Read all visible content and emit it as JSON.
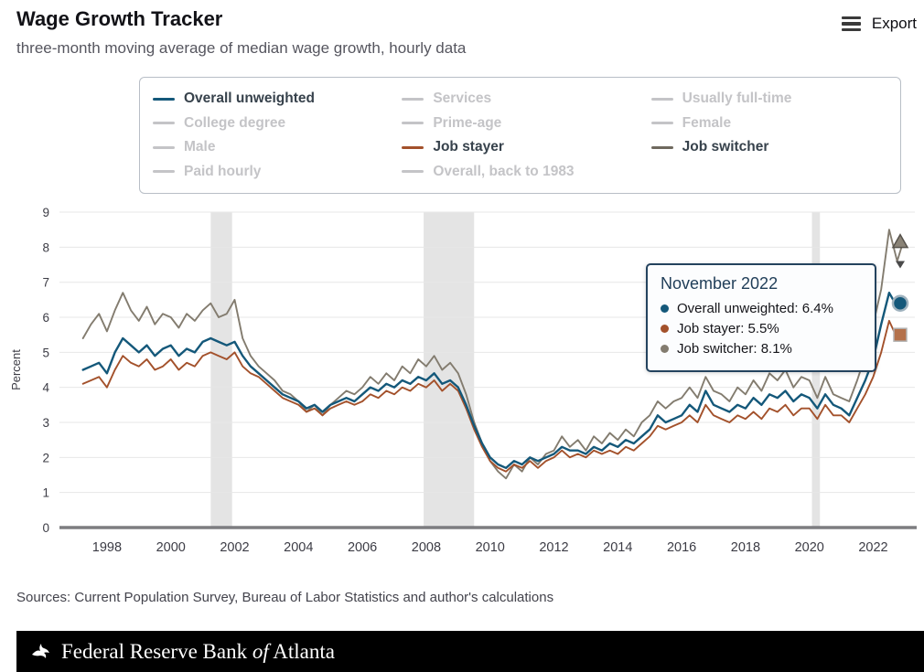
{
  "header": {
    "title": "Wage Growth Tracker",
    "subtitle": "three-month moving average of median wage growth, hourly data",
    "export_label": "Export"
  },
  "legend": {
    "inactive_color": "#c4c4c7",
    "active_text_color": "#37424c",
    "items": [
      {
        "label": "Overall unweighted",
        "active": true,
        "color": "#14587a"
      },
      {
        "label": "Services",
        "active": false
      },
      {
        "label": "Usually full-time",
        "active": false
      },
      {
        "label": "College degree",
        "active": false
      },
      {
        "label": "Prime-age",
        "active": false
      },
      {
        "label": "Female",
        "active": false
      },
      {
        "label": "Male",
        "active": false
      },
      {
        "label": "Job stayer",
        "active": true,
        "color": "#a3512b"
      },
      {
        "label": "Job switcher",
        "active": true,
        "color": "#6f695e"
      },
      {
        "label": "Paid hourly",
        "active": false
      },
      {
        "label": "Overall, back to 1983",
        "active": false
      }
    ]
  },
  "tooltip": {
    "title": "November 2022",
    "items": [
      {
        "label": "Overall unweighted",
        "value": "6.4%",
        "color": "#14587a"
      },
      {
        "label": "Job stayer",
        "value": "5.5%",
        "color": "#a3512b"
      },
      {
        "label": "Job switcher",
        "value": "8.1%",
        "color": "#837c6f"
      }
    ]
  },
  "chart_data": {
    "type": "line",
    "title": "",
    "xlabel": "",
    "ylabel": "Percent",
    "ylim": [
      0,
      9
    ],
    "yticks": [
      0,
      1,
      2,
      3,
      4,
      5,
      6,
      7,
      8,
      9
    ],
    "xticks": [
      1998,
      2000,
      2002,
      2004,
      2006,
      2008,
      2010,
      2012,
      2014,
      2016,
      2018,
      2020,
      2022
    ],
    "grid": "horizontal",
    "legend_position": "top",
    "x": [
      1997.25,
      1997.5,
      1997.75,
      1998,
      1998.25,
      1998.5,
      1998.75,
      1999,
      1999.25,
      1999.5,
      1999.75,
      2000,
      2000.25,
      2000.5,
      2000.75,
      2001,
      2001.25,
      2001.5,
      2001.75,
      2002,
      2002.25,
      2002.5,
      2002.75,
      2003,
      2003.25,
      2003.5,
      2003.75,
      2004,
      2004.25,
      2004.5,
      2004.75,
      2005,
      2005.25,
      2005.5,
      2005.75,
      2006,
      2006.25,
      2006.5,
      2006.75,
      2007,
      2007.25,
      2007.5,
      2007.75,
      2008,
      2008.25,
      2008.5,
      2008.75,
      2009,
      2009.25,
      2009.5,
      2009.75,
      2010,
      2010.25,
      2010.5,
      2010.75,
      2011,
      2011.25,
      2011.5,
      2011.75,
      2012,
      2012.25,
      2012.5,
      2012.75,
      2013,
      2013.25,
      2013.5,
      2013.75,
      2014,
      2014.25,
      2014.5,
      2014.75,
      2015,
      2015.25,
      2015.5,
      2015.75,
      2016,
      2016.25,
      2016.5,
      2016.75,
      2017,
      2017.25,
      2017.5,
      2017.75,
      2018,
      2018.25,
      2018.5,
      2018.75,
      2019,
      2019.25,
      2019.5,
      2019.75,
      2020,
      2020.25,
      2020.5,
      2020.75,
      2021,
      2021.25,
      2021.5,
      2021.75,
      2022,
      2022.25,
      2022.5,
      2022.75,
      2022.92
    ],
    "series": [
      {
        "name": "Overall unweighted",
        "color": "#14587a",
        "width": 2.4,
        "values": [
          4.5,
          4.6,
          4.7,
          4.4,
          5.0,
          5.4,
          5.2,
          5.0,
          5.2,
          4.9,
          5.1,
          5.2,
          4.9,
          5.1,
          5.0,
          5.3,
          5.4,
          5.3,
          5.2,
          5.3,
          4.9,
          4.6,
          4.4,
          4.2,
          4.0,
          3.8,
          3.7,
          3.6,
          3.4,
          3.5,
          3.3,
          3.5,
          3.6,
          3.7,
          3.6,
          3.8,
          4.0,
          3.9,
          4.1,
          4.0,
          4.2,
          4.1,
          4.3,
          4.2,
          4.4,
          4.1,
          4.2,
          4.0,
          3.5,
          2.9,
          2.4,
          2.0,
          1.8,
          1.7,
          1.9,
          1.8,
          2.0,
          1.9,
          2.0,
          2.1,
          2.3,
          2.2,
          2.2,
          2.1,
          2.3,
          2.2,
          2.4,
          2.3,
          2.5,
          2.4,
          2.6,
          2.8,
          3.2,
          3.0,
          3.1,
          3.2,
          3.5,
          3.3,
          3.9,
          3.5,
          3.4,
          3.3,
          3.5,
          3.4,
          3.7,
          3.5,
          3.8,
          3.7,
          3.9,
          3.6,
          3.8,
          3.7,
          3.4,
          3.8,
          3.5,
          3.4,
          3.2,
          3.7,
          4.2,
          4.8,
          5.8,
          6.7,
          6.3,
          6.4
        ]
      },
      {
        "name": "Job stayer",
        "color": "#a3512b",
        "width": 1.9,
        "values": [
          4.1,
          4.2,
          4.3,
          4.0,
          4.5,
          4.9,
          4.7,
          4.6,
          4.8,
          4.5,
          4.6,
          4.8,
          4.5,
          4.7,
          4.6,
          4.9,
          5.0,
          4.9,
          4.8,
          5.0,
          4.6,
          4.4,
          4.3,
          4.1,
          3.9,
          3.7,
          3.6,
          3.5,
          3.3,
          3.4,
          3.2,
          3.4,
          3.5,
          3.6,
          3.5,
          3.6,
          3.8,
          3.7,
          3.9,
          3.8,
          4.0,
          3.9,
          4.1,
          4.0,
          4.2,
          3.9,
          4.1,
          3.9,
          3.4,
          2.8,
          2.3,
          1.9,
          1.7,
          1.6,
          1.8,
          1.7,
          1.9,
          1.7,
          1.9,
          2.0,
          2.2,
          2.0,
          2.1,
          2.0,
          2.2,
          2.1,
          2.2,
          2.1,
          2.3,
          2.2,
          2.4,
          2.6,
          2.9,
          2.8,
          2.9,
          3.0,
          3.2,
          3.0,
          3.5,
          3.2,
          3.1,
          3.0,
          3.2,
          3.1,
          3.3,
          3.1,
          3.4,
          3.3,
          3.5,
          3.2,
          3.4,
          3.4,
          3.1,
          3.5,
          3.2,
          3.2,
          3.0,
          3.4,
          3.8,
          4.3,
          5.0,
          5.9,
          5.4,
          5.5
        ]
      },
      {
        "name": "Job switcher",
        "color": "#837c6f",
        "width": 1.9,
        "values": [
          5.4,
          5.8,
          6.1,
          5.6,
          6.2,
          6.7,
          6.2,
          5.9,
          6.3,
          5.8,
          6.1,
          6.0,
          5.7,
          6.1,
          5.9,
          6.2,
          6.4,
          6.0,
          6.1,
          6.5,
          5.4,
          4.9,
          4.6,
          4.4,
          4.2,
          3.9,
          3.8,
          3.6,
          3.3,
          3.5,
          3.2,
          3.5,
          3.7,
          3.9,
          3.8,
          4.0,
          4.3,
          4.1,
          4.4,
          4.2,
          4.6,
          4.4,
          4.8,
          4.6,
          4.9,
          4.5,
          4.7,
          4.4,
          3.8,
          3.0,
          2.4,
          1.9,
          1.6,
          1.4,
          1.8,
          1.6,
          2.0,
          1.8,
          2.1,
          2.2,
          2.6,
          2.3,
          2.5,
          2.2,
          2.6,
          2.4,
          2.7,
          2.5,
          2.8,
          2.6,
          3.0,
          3.2,
          3.6,
          3.4,
          3.6,
          3.7,
          4.0,
          3.7,
          4.3,
          3.9,
          3.8,
          3.6,
          4.0,
          3.8,
          4.2,
          3.9,
          4.4,
          4.2,
          4.5,
          4.0,
          4.3,
          4.2,
          3.7,
          4.3,
          3.8,
          3.7,
          3.6,
          4.2,
          4.9,
          5.8,
          6.8,
          8.5,
          7.6,
          8.1
        ]
      }
    ],
    "recessions": [
      {
        "start": 2001.25,
        "end": 2001.92
      },
      {
        "start": 2007.92,
        "end": 2009.5
      },
      {
        "start": 2020.08,
        "end": 2020.33
      }
    ],
    "end_markers": [
      {
        "series": "Job switcher",
        "shape": "triangle-up",
        "value": 8.15,
        "fill": "#8a8376",
        "stroke": "#55514a"
      },
      {
        "series": "Job switcher",
        "shape": "arrow-down",
        "value": 7.5,
        "fill": "#4a4a4a",
        "stroke": "#4a4a4a"
      },
      {
        "series": "Overall unweighted",
        "shape": "circle",
        "value": 6.4,
        "fill": "#14587a",
        "stroke": "#9fb2be"
      },
      {
        "series": "Job stayer",
        "shape": "square",
        "value": 5.5,
        "fill": "#b4714a",
        "stroke": "#b3b3b3"
      }
    ]
  },
  "sources": "Sources: Current Population Survey, Bureau of Labor Statistics and author's calculations",
  "footer": {
    "text_prefix": "Federal Reserve Bank ",
    "text_of": "of",
    "text_suffix": " Atlanta"
  }
}
